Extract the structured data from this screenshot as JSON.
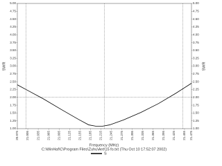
{
  "chart_data": {
    "type": "line",
    "ylabel": "SWR",
    "xlabel": "Frequency (MHz)",
    "subtitle": "C:\\WinHaf\\C\\Program Files\\Zuhu\\Ant\\15 fo.txt (Thu Oct 10 17:52:07 2002)",
    "xlim": [
      20.975,
      21.475
    ],
    "xticks": [
      20.975,
      21.005,
      21.035,
      21.065,
      21.095,
      21.125,
      21.155,
      21.185,
      21.215,
      21.245,
      21.275,
      21.305,
      21.335,
      21.365,
      21.395,
      21.425,
      21.455,
      21.475
    ],
    "ylim": [
      1,
      5
    ],
    "yticks": [
      {
        "value": 1,
        "label": "1.00"
      },
      {
        "value": 1.25,
        "label": "1.25"
      },
      {
        "value": 1.5,
        "label": "1.50"
      },
      {
        "value": 1.75,
        "label": "1.75"
      },
      {
        "value": 2,
        "label": "2.00"
      },
      {
        "value": 2.25,
        "label": "2.25"
      },
      {
        "value": 2.5,
        "label": "2.50"
      },
      {
        "value": 2.75,
        "label": "2.75"
      },
      {
        "value": 3,
        "label": "3.00"
      },
      {
        "value": 3.25,
        "label": "3.25"
      },
      {
        "value": 3.5,
        "label": "3.50"
      },
      {
        "value": 3.75,
        "label": "3.75"
      },
      {
        "value": 4,
        "label": "4.00"
      },
      {
        "value": 4.25,
        "label": "4.25"
      },
      {
        "value": 4.5,
        "label": "4.50"
      },
      {
        "value": 4.75,
        "label": "4.75"
      },
      {
        "value": 5,
        "label": "5.00"
      }
    ],
    "reference_x": [
      21.0,
      21.225,
      21.45
    ],
    "reference_y": [
      2
    ],
    "x": [
      20.975,
      21.0,
      21.05,
      21.1,
      21.15,
      21.18,
      21.2,
      21.22,
      21.24,
      21.28,
      21.33,
      21.38,
      21.43,
      21.475
    ],
    "series": [
      {
        "name": "S",
        "color": "#000000",
        "values": [
          2.4,
          2.25,
          1.95,
          1.62,
          1.3,
          1.12,
          1.08,
          1.08,
          1.12,
          1.28,
          1.52,
          1.8,
          2.13,
          2.45
        ]
      }
    ]
  }
}
